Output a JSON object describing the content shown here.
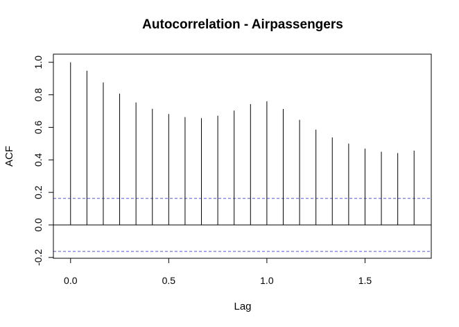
{
  "chart_data": {
    "type": "bar",
    "title": "Autocorrelation - Airpassengers",
    "xlabel": "Lag",
    "ylabel": "ACF",
    "x": [
      0.0,
      0.0833,
      0.1667,
      0.25,
      0.3333,
      0.4167,
      0.5,
      0.5833,
      0.6667,
      0.75,
      0.8333,
      0.9167,
      1.0,
      1.0833,
      1.1667,
      1.25,
      1.3333,
      1.4167,
      1.5,
      1.5833,
      1.6667,
      1.75
    ],
    "values": [
      1.0,
      0.948,
      0.876,
      0.807,
      0.753,
      0.714,
      0.682,
      0.663,
      0.656,
      0.671,
      0.703,
      0.743,
      0.76,
      0.713,
      0.646,
      0.586,
      0.538,
      0.5,
      0.469,
      0.45,
      0.442,
      0.457
    ],
    "xlim": [
      -0.0875,
      1.8375
    ],
    "ylim": [
      -0.205,
      1.05
    ],
    "x_ticks": [
      0.0,
      0.5,
      1.0,
      1.5
    ],
    "x_tick_labels": [
      "0.0",
      "0.5",
      "1.0",
      "1.5"
    ],
    "y_ticks": [
      -0.2,
      0.0,
      0.2,
      0.4,
      0.6,
      0.8,
      1.0
    ],
    "y_tick_labels": [
      "-0.2",
      "0.0",
      "0.2",
      "0.4",
      "0.6",
      "0.8",
      "1.0"
    ],
    "confidence_bound": 0.163,
    "confidence_color": "#5555dd",
    "bar_color": "#000000",
    "grid": false,
    "legend": "none"
  }
}
